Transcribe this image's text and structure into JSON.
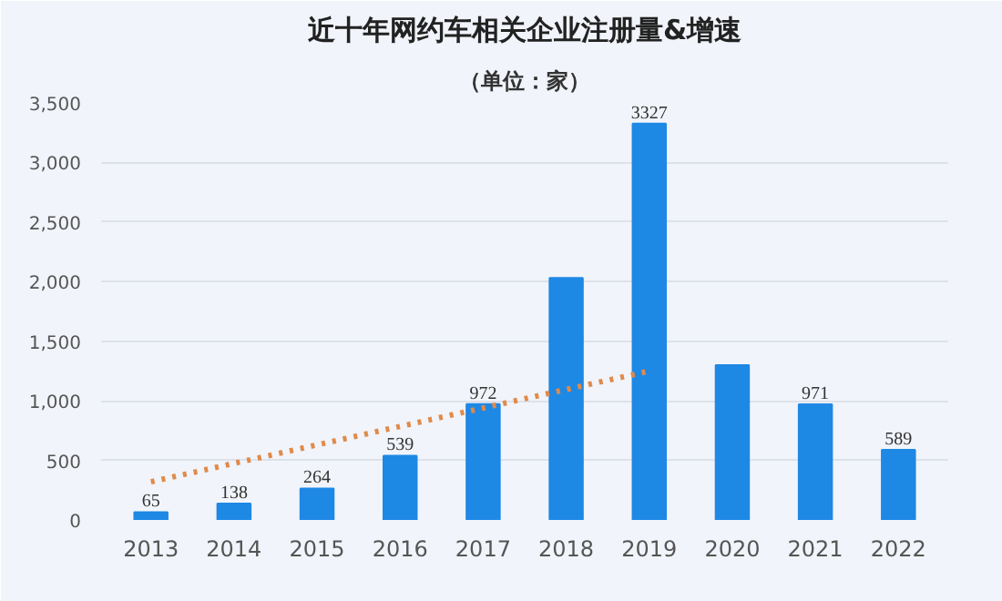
{
  "chart_data": {
    "type": "bar",
    "title": "近十年网约车相关企业注册量&增速",
    "subtitle": "（单位：家）",
    "categories": [
      "2013",
      "2014",
      "2015",
      "2016",
      "2017",
      "2018",
      "2019",
      "2020",
      "2021",
      "2022"
    ],
    "series": [
      {
        "color": "#1e88e5",
        "values": [
          65,
          138,
          264,
          539,
          972,
          2030,
          3327,
          1300,
          971,
          589
        ],
        "value_labels": [
          "65",
          "138",
          "264",
          "539",
          "972",
          null,
          "3327",
          null,
          "971",
          "589"
        ]
      },
      {
        "type": "line",
        "color": "#e08a4a",
        "line_style": "dotted",
        "values": [
          320,
          475,
          630,
          785,
          940,
          1095,
          1250,
          null,
          null,
          null
        ]
      }
    ],
    "ylim": [
      0,
      3500
    ],
    "yticks": [
      {
        "value": 0,
        "label": "0"
      },
      {
        "value": 500,
        "label": "500"
      },
      {
        "value": 1000,
        "label": "1,000"
      },
      {
        "value": 1500,
        "label": "1,500"
      },
      {
        "value": 2000,
        "label": "2,000"
      },
      {
        "value": 2500,
        "label": "2,500"
      },
      {
        "value": 3000,
        "label": "3,000"
      },
      {
        "value": 3500,
        "label": "3,500"
      }
    ],
    "grid": "y"
  }
}
